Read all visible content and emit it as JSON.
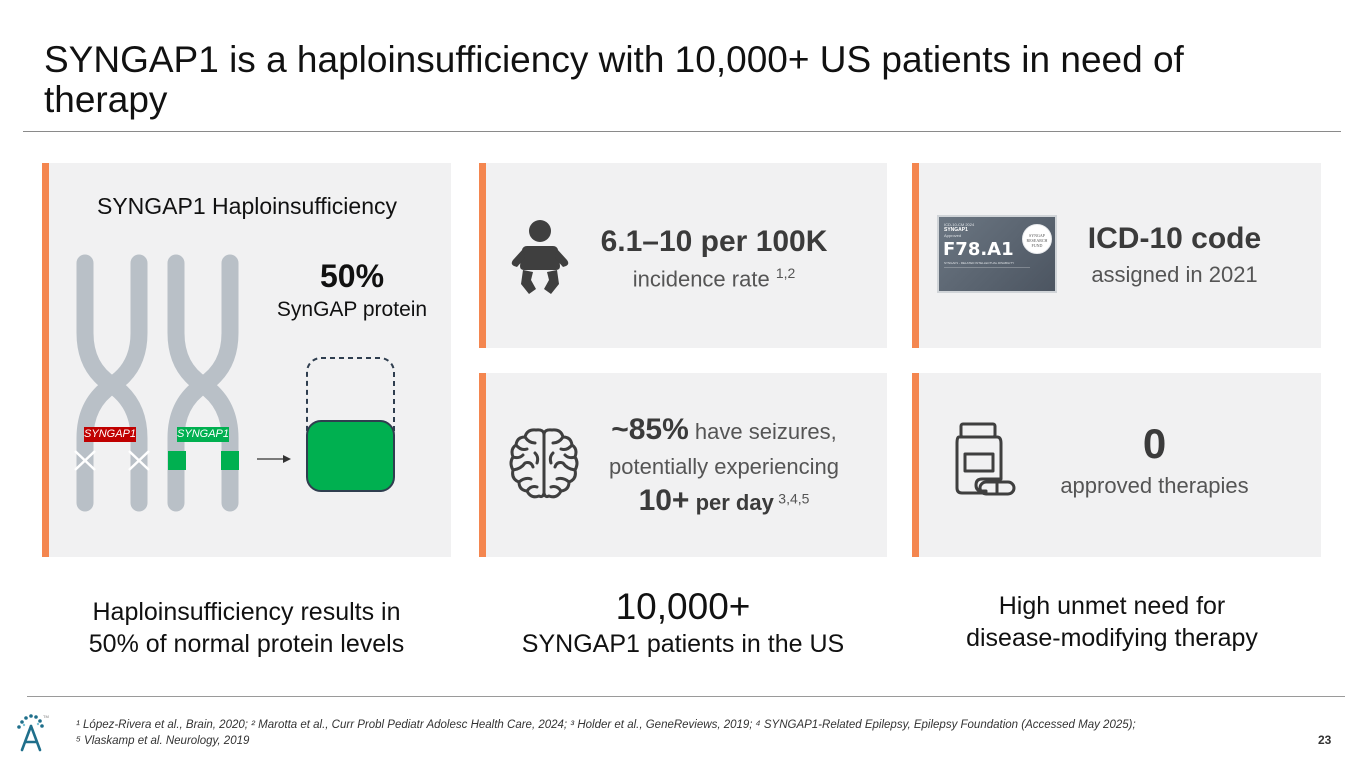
{
  "title": "SYNGAP1 is a haploinsufficiency with 10,000+ US patients in need of therapy",
  "haplo_card": {
    "heading": "SYNGAP1 Haploinsufficiency",
    "percent": "50%",
    "percent_label": "SynGAP protein",
    "gene_label_mutant": "SYNGAP1",
    "gene_label_normal": "SYNGAP1",
    "colors": {
      "mutant": "#c00000",
      "normal": "#00b050",
      "chromosome": "#b9c0c7",
      "protein": "#00b050"
    }
  },
  "incidence_card": {
    "stat": "6.1–10 per 100K",
    "label": "incidence rate ",
    "refs": "1,2",
    "icon": "baby-icon"
  },
  "icd_card": {
    "stat": "ICD-10 code",
    "label": "assigned in 2021",
    "certificate": {
      "line1": "ICD-10-CM 2024",
      "line2": "SYNGAP1",
      "line3": "Approved",
      "code": "F78.A1",
      "subtitle": "SYNGAP1 - RELATED INTELLECTUAL DISABILITY",
      "seal": "SYNGAP RESEARCH FUND"
    }
  },
  "seizure_card": {
    "stat": "~85%",
    "stat_suffix": " have seizures,",
    "line2": "potentially experiencing",
    "stat2": "10+",
    "stat2_suffix": " per day",
    "refs": "3,4,5",
    "icon": "brain-icon"
  },
  "therapy_card": {
    "stat": "0",
    "label": "approved therapies",
    "icon": "medicine-bottle-icon"
  },
  "bottom": {
    "left_line1": "Haploinsufficiency results in",
    "left_line2": "50% of normal protein levels",
    "center_big": "10,000+",
    "center_line": "SYNGAP1 patients in the US",
    "right_line1": "High unmet need for",
    "right_line2": "disease-modifying therapy"
  },
  "footnotes": {
    "line1": "¹ López-Rivera et al., Brain, 2020; ² Marotta et al., Curr Probl Pediatr Adolesc Health Care, 2024; ³ Holder et al., GeneReviews, 2019; ⁴ SYNGAP1-Related Epilepsy, Epilepsy Foundation (Accessed May 2025);",
    "line2": "⁵ Vlaskamp et al. Neurology, 2019"
  },
  "page_number": "23",
  "logo": {
    "icon": "company-logo-icon",
    "tm": "TM"
  },
  "accent_color": "#f4864f"
}
